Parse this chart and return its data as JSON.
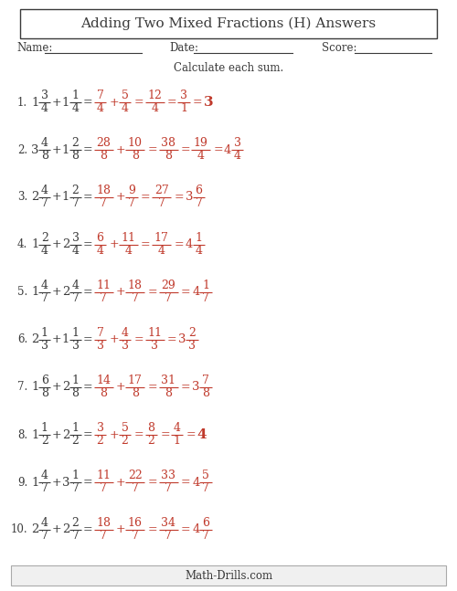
{
  "title": "Adding Two Mixed Fractions (H) Answers",
  "subtitle": "Calculate each sum.",
  "footer": "Math-Drills.com",
  "bg_color": "#ffffff",
  "dark_color": "#3a3a3a",
  "red_color": "#c0392b",
  "problems": [
    {
      "num": "1.",
      "w1": "1",
      "n1": "3",
      "d1": "4",
      "w2": "1",
      "n2": "1",
      "d2": "4",
      "rn1": "7",
      "rd1": "4",
      "rn2": "5",
      "rd2": "4",
      "sn": "12",
      "sd": "4",
      "fn": "3",
      "fd": "1",
      "fw": "",
      "fan": "",
      "fad": "",
      "final": "3",
      "simplifies_to_whole": true
    },
    {
      "num": "2.",
      "w1": "3",
      "n1": "4",
      "d1": "8",
      "w2": "1",
      "n2": "2",
      "d2": "8",
      "rn1": "28",
      "rd1": "8",
      "rn2": "10",
      "rd2": "8",
      "sn": "38",
      "sd": "8",
      "fn": "19",
      "fd": "4",
      "fw": "4",
      "fan": "3",
      "fad": "4",
      "final": "",
      "simplifies_to_whole": false
    },
    {
      "num": "3.",
      "w1": "2",
      "n1": "4",
      "d1": "7",
      "w2": "1",
      "n2": "2",
      "d2": "7",
      "rn1": "18",
      "rd1": "7",
      "rn2": "9",
      "rd2": "7",
      "sn": "27",
      "sd": "7",
      "fn": "",
      "fd": "",
      "fw": "3",
      "fan": "6",
      "fad": "7",
      "final": "",
      "simplifies_to_whole": false
    },
    {
      "num": "4.",
      "w1": "1",
      "n1": "2",
      "d1": "4",
      "w2": "2",
      "n2": "3",
      "d2": "4",
      "rn1": "6",
      "rd1": "4",
      "rn2": "11",
      "rd2": "4",
      "sn": "17",
      "sd": "4",
      "fn": "",
      "fd": "",
      "fw": "4",
      "fan": "1",
      "fad": "4",
      "final": "",
      "simplifies_to_whole": false
    },
    {
      "num": "5.",
      "w1": "1",
      "n1": "4",
      "d1": "7",
      "w2": "2",
      "n2": "4",
      "d2": "7",
      "rn1": "11",
      "rd1": "7",
      "rn2": "18",
      "rd2": "7",
      "sn": "29",
      "sd": "7",
      "fn": "",
      "fd": "",
      "fw": "4",
      "fan": "1",
      "fad": "7",
      "final": "",
      "simplifies_to_whole": false
    },
    {
      "num": "6.",
      "w1": "2",
      "n1": "1",
      "d1": "3",
      "w2": "1",
      "n2": "1",
      "d2": "3",
      "rn1": "7",
      "rd1": "3",
      "rn2": "4",
      "rd2": "3",
      "sn": "11",
      "sd": "3",
      "fn": "",
      "fd": "",
      "fw": "3",
      "fan": "2",
      "fad": "3",
      "final": "",
      "simplifies_to_whole": false
    },
    {
      "num": "7.",
      "w1": "1",
      "n1": "6",
      "d1": "8",
      "w2": "2",
      "n2": "1",
      "d2": "8",
      "rn1": "14",
      "rd1": "8",
      "rn2": "17",
      "rd2": "8",
      "sn": "31",
      "sd": "8",
      "fn": "",
      "fd": "",
      "fw": "3",
      "fan": "7",
      "fad": "8",
      "final": "",
      "simplifies_to_whole": false
    },
    {
      "num": "8.",
      "w1": "1",
      "n1": "1",
      "d1": "2",
      "w2": "2",
      "n2": "1",
      "d2": "2",
      "rn1": "3",
      "rd1": "2",
      "rn2": "5",
      "rd2": "2",
      "sn": "8",
      "sd": "2",
      "fn": "4",
      "fd": "1",
      "fw": "",
      "fan": "",
      "fad": "",
      "final": "4",
      "simplifies_to_whole": true
    },
    {
      "num": "9.",
      "w1": "1",
      "n1": "4",
      "d1": "7",
      "w2": "3",
      "n2": "1",
      "d2": "7",
      "rn1": "11",
      "rd1": "7",
      "rn2": "22",
      "rd2": "7",
      "sn": "33",
      "sd": "7",
      "fn": "",
      "fd": "",
      "fw": "4",
      "fan": "5",
      "fad": "7",
      "final": "",
      "simplifies_to_whole": false
    },
    {
      "num": "10.",
      "w1": "2",
      "n1": "4",
      "d1": "7",
      "w2": "2",
      "n2": "2",
      "d2": "7",
      "rn1": "18",
      "rd1": "7",
      "rn2": "16",
      "rd2": "7",
      "sn": "34",
      "sd": "7",
      "fn": "",
      "fd": "",
      "fw": "4",
      "fan": "6",
      "fad": "7",
      "final": "",
      "simplifies_to_whole": false
    }
  ]
}
